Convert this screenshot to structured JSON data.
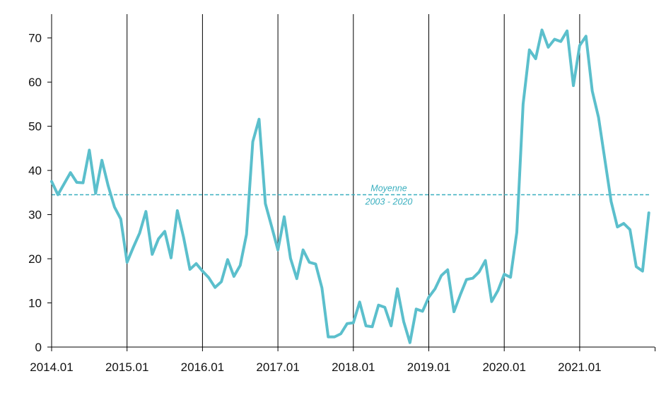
{
  "chart_data": {
    "type": "line",
    "title": "",
    "xlabel": "",
    "ylabel": "",
    "ylim": [
      0,
      75
    ],
    "yticks": [
      0,
      10,
      20,
      30,
      40,
      50,
      60,
      70
    ],
    "xticks": [
      "2014.01",
      "2015.01",
      "2016.01",
      "2017.01",
      "2018.01",
      "2019.01",
      "2020.01",
      "2021.01"
    ],
    "grid": "vertical lines at each year",
    "series": [
      {
        "color": "#5bbfcc",
        "values": [
          37.5,
          34.5,
          37.0,
          39.5,
          37.3,
          37.2,
          44.6,
          34.8,
          42.3,
          36.5,
          31.7,
          29.0,
          19.2,
          22.6,
          25.8,
          30.7,
          21.0,
          24.5,
          26.2,
          20.2,
          30.9,
          24.8,
          17.6,
          18.9,
          17.2,
          15.7,
          13.5,
          14.8,
          19.8,
          16.0,
          18.5,
          25.5,
          46.5,
          51.6,
          32.5,
          27.3,
          22.0,
          29.5,
          20.1,
          15.5,
          22.0,
          19.2,
          18.8,
          13.4,
          2.3,
          2.3,
          3.0,
          5.3,
          5.5,
          10.2,
          4.8,
          4.6,
          9.5,
          9.0,
          4.8,
          13.2,
          5.8,
          1.0,
          8.6,
          8.1,
          11.3,
          13.2,
          16.2,
          17.5,
          8.0,
          11.8,
          15.3,
          15.6,
          17.0,
          19.6,
          10.3,
          12.8,
          16.5,
          15.8,
          26.0,
          55.0,
          67.3,
          65.3,
          71.8,
          67.9,
          69.7,
          69.2,
          71.6,
          59.2,
          68.3,
          70.4,
          58.0,
          52.0,
          42.5,
          33.0,
          27.2,
          28.0,
          26.6,
          18.2,
          17.2,
          30.4
        ]
      }
    ],
    "reference_line": {
      "value": 34.5,
      "color": "#3aafbf",
      "label_line1": "Moyenne",
      "label_line2": "2003 - 2020"
    }
  }
}
